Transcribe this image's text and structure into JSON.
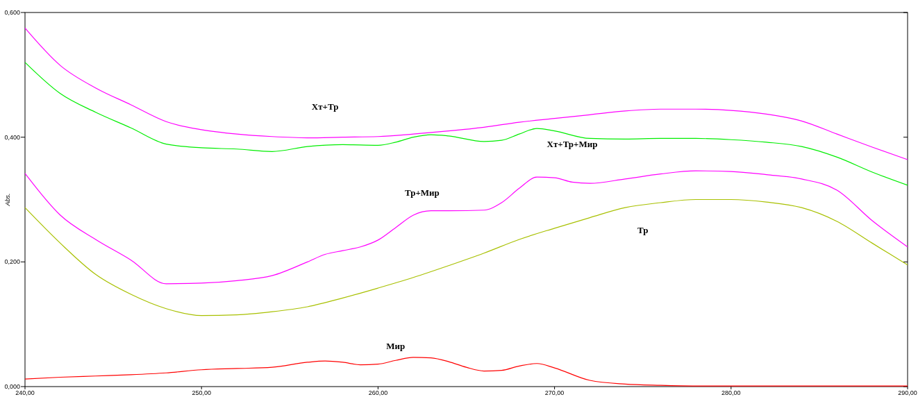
{
  "chart_data": {
    "type": "line",
    "ylabel": "Abs.",
    "xlim": [
      240,
      290
    ],
    "ylim": [
      0,
      0.6
    ],
    "xticks": [
      {
        "value": 240,
        "label": "240,00"
      },
      {
        "value": 250,
        "label": "250,00"
      },
      {
        "value": 260,
        "label": "260,00"
      },
      {
        "value": 270,
        "label": "270,00"
      },
      {
        "value": 280,
        "label": "280,00"
      },
      {
        "value": 290,
        "label": "290,00"
      }
    ],
    "yticks": [
      {
        "value": 0,
        "label": "0,000"
      },
      {
        "value": 0.2,
        "label": "0,200"
      },
      {
        "value": 0.4,
        "label": "0,400"
      },
      {
        "value": 0.6,
        "label": "0,600"
      }
    ],
    "grid": false,
    "marker": "none",
    "line_style": "solid",
    "series": [
      {
        "name": "Хт+Тр",
        "color": "#ff00ff",
        "x": [
          240,
          242,
          244,
          246,
          248,
          250,
          252,
          254,
          256,
          258,
          260,
          262,
          264,
          266,
          268,
          270,
          272,
          274,
          276,
          278,
          280,
          282,
          284,
          286,
          288,
          290
        ],
        "values": [
          0.575,
          0.515,
          0.479,
          0.452,
          0.425,
          0.412,
          0.405,
          0.401,
          0.399,
          0.4,
          0.401,
          0.405,
          0.41,
          0.416,
          0.424,
          0.43,
          0.436,
          0.442,
          0.445,
          0.445,
          0.443,
          0.437,
          0.426,
          0.405,
          0.384,
          0.364
        ]
      },
      {
        "name": "Хт+Тр+Мир",
        "color": "#00ee00",
        "x": [
          240,
          242,
          244,
          246,
          248,
          250,
          252,
          254,
          256,
          258,
          260,
          261,
          262,
          263,
          264,
          266,
          267,
          268,
          269,
          270,
          272,
          274,
          276,
          278,
          280,
          282,
          284,
          286,
          288,
          290
        ],
        "values": [
          0.52,
          0.47,
          0.44,
          0.415,
          0.389,
          0.383,
          0.381,
          0.377,
          0.385,
          0.388,
          0.387,
          0.392,
          0.4,
          0.404,
          0.402,
          0.393,
          0.395,
          0.405,
          0.414,
          0.41,
          0.398,
          0.397,
          0.398,
          0.398,
          0.396,
          0.392,
          0.385,
          0.368,
          0.344,
          0.323
        ]
      },
      {
        "name": "Тр+Мир",
        "color": "#ff00ff",
        "x": [
          240,
          242,
          244,
          246,
          248,
          250,
          252,
          254,
          256,
          257,
          258,
          259,
          260,
          261,
          262,
          263,
          264,
          266,
          267,
          268,
          269,
          270,
          271,
          272,
          274,
          276,
          278,
          280,
          282,
          284,
          286,
          288,
          290
        ],
        "values": [
          0.342,
          0.275,
          0.236,
          0.203,
          0.165,
          0.166,
          0.17,
          0.178,
          0.2,
          0.212,
          0.218,
          0.224,
          0.235,
          0.255,
          0.275,
          0.282,
          0.282,
          0.283,
          0.295,
          0.318,
          0.336,
          0.335,
          0.328,
          0.326,
          0.333,
          0.341,
          0.346,
          0.345,
          0.34,
          0.333,
          0.315,
          0.266,
          0.224
        ]
      },
      {
        "name": "Тр",
        "color": "#a8c000",
        "x": [
          240,
          242,
          244,
          246,
          248,
          250,
          252,
          254,
          256,
          258,
          260,
          262,
          264,
          266,
          268,
          270,
          272,
          274,
          276,
          278,
          280,
          282,
          284,
          286,
          288,
          290
        ],
        "values": [
          0.287,
          0.23,
          0.18,
          0.148,
          0.125,
          0.114,
          0.115,
          0.12,
          0.128,
          0.142,
          0.158,
          0.175,
          0.194,
          0.214,
          0.236,
          0.254,
          0.271,
          0.287,
          0.295,
          0.3,
          0.3,
          0.296,
          0.287,
          0.265,
          0.23,
          0.195
        ]
      },
      {
        "name": "Мир",
        "color": "#ff0000",
        "x": [
          240,
          242,
          244,
          246,
          248,
          250,
          252,
          254,
          256,
          257,
          258,
          259,
          260,
          261,
          262,
          263,
          264,
          265,
          266,
          267,
          268,
          269,
          270,
          272,
          274,
          276,
          278,
          280,
          285,
          290
        ],
        "values": [
          0.012,
          0.015,
          0.017,
          0.019,
          0.022,
          0.027,
          0.029,
          0.031,
          0.039,
          0.041,
          0.039,
          0.035,
          0.036,
          0.042,
          0.047,
          0.046,
          0.04,
          0.031,
          0.025,
          0.026,
          0.033,
          0.037,
          0.03,
          0.01,
          0.004,
          0.002,
          0.001,
          0.001,
          0.001,
          0.001
        ]
      }
    ]
  }
}
